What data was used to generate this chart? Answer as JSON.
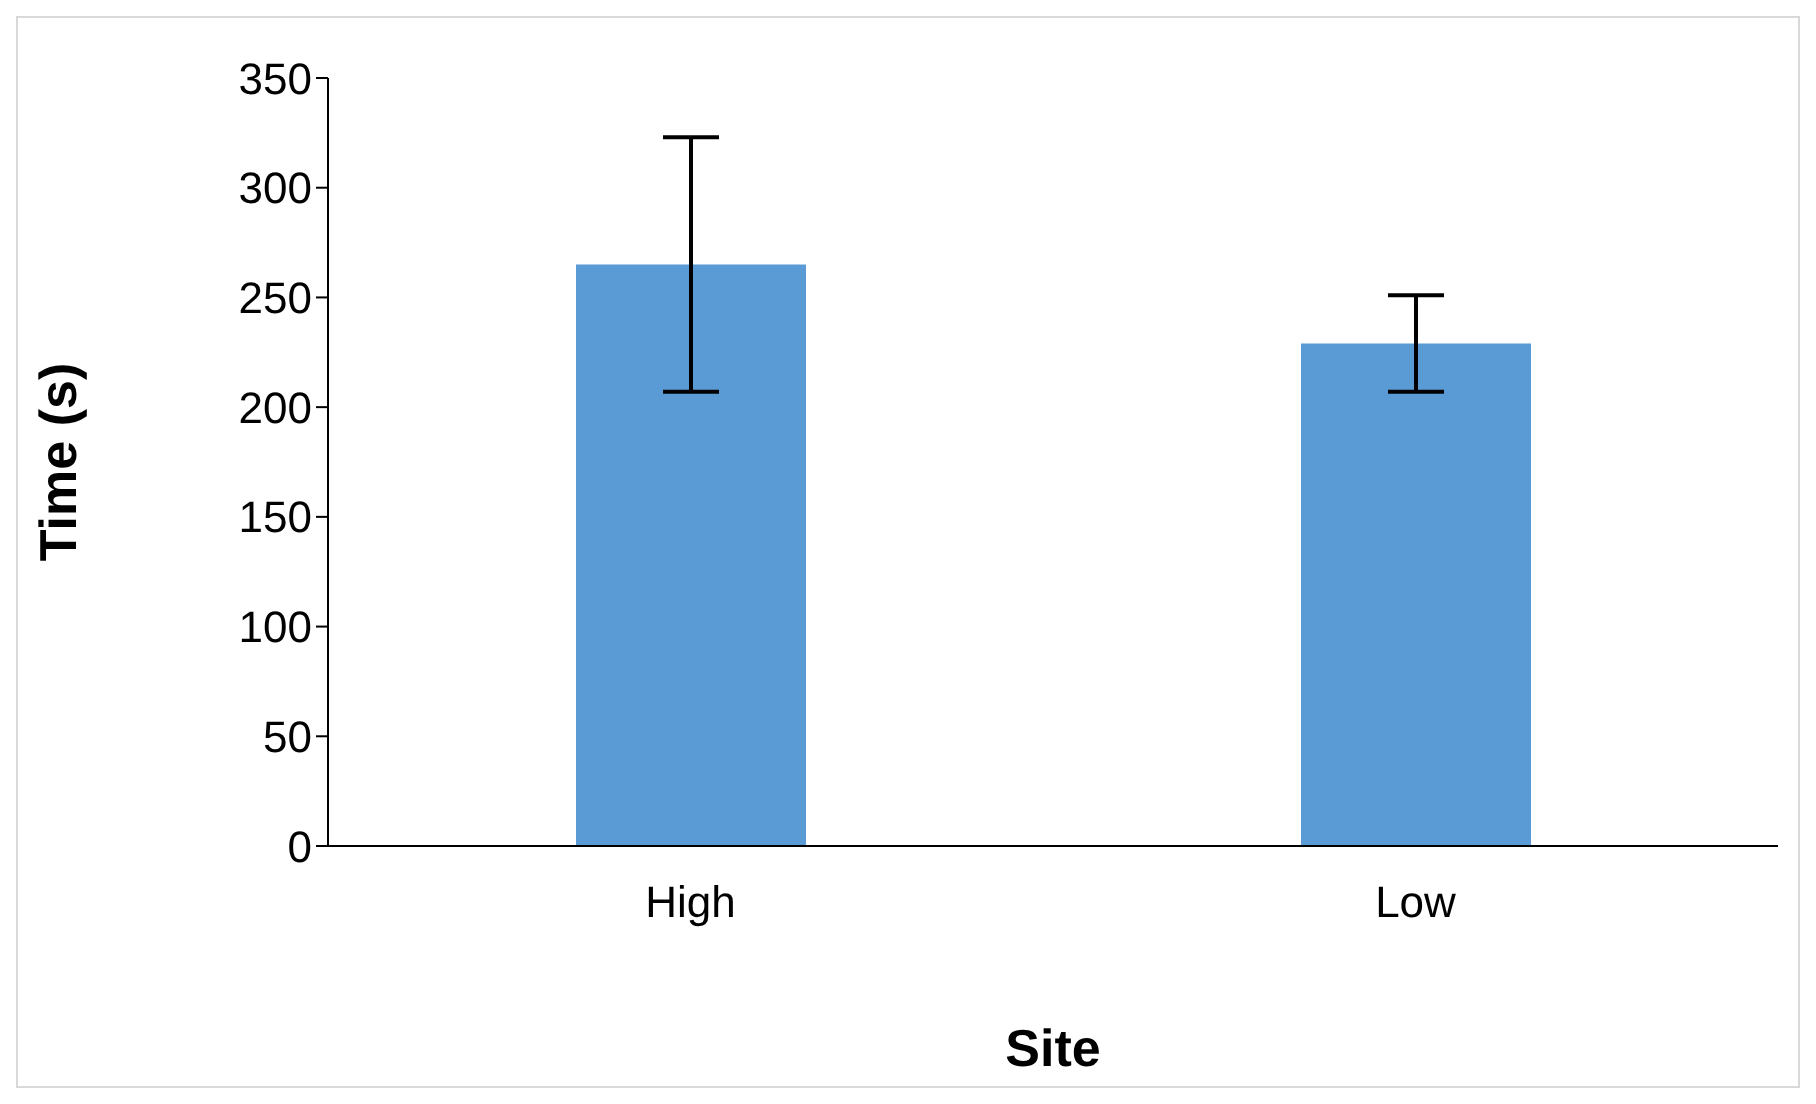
{
  "chart_data": {
    "type": "bar",
    "xlabel": "Site",
    "ylabel": "Time (s)",
    "categories": [
      "High",
      "Low"
    ],
    "values": [
      265,
      229
    ],
    "errors": [
      58,
      22
    ],
    "color": "#5b9bd5",
    "ylim": [
      0,
      350
    ],
    "yticks": [
      0,
      50,
      100,
      150,
      200,
      250,
      300,
      350
    ],
    "grid": false,
    "legend": false
  }
}
